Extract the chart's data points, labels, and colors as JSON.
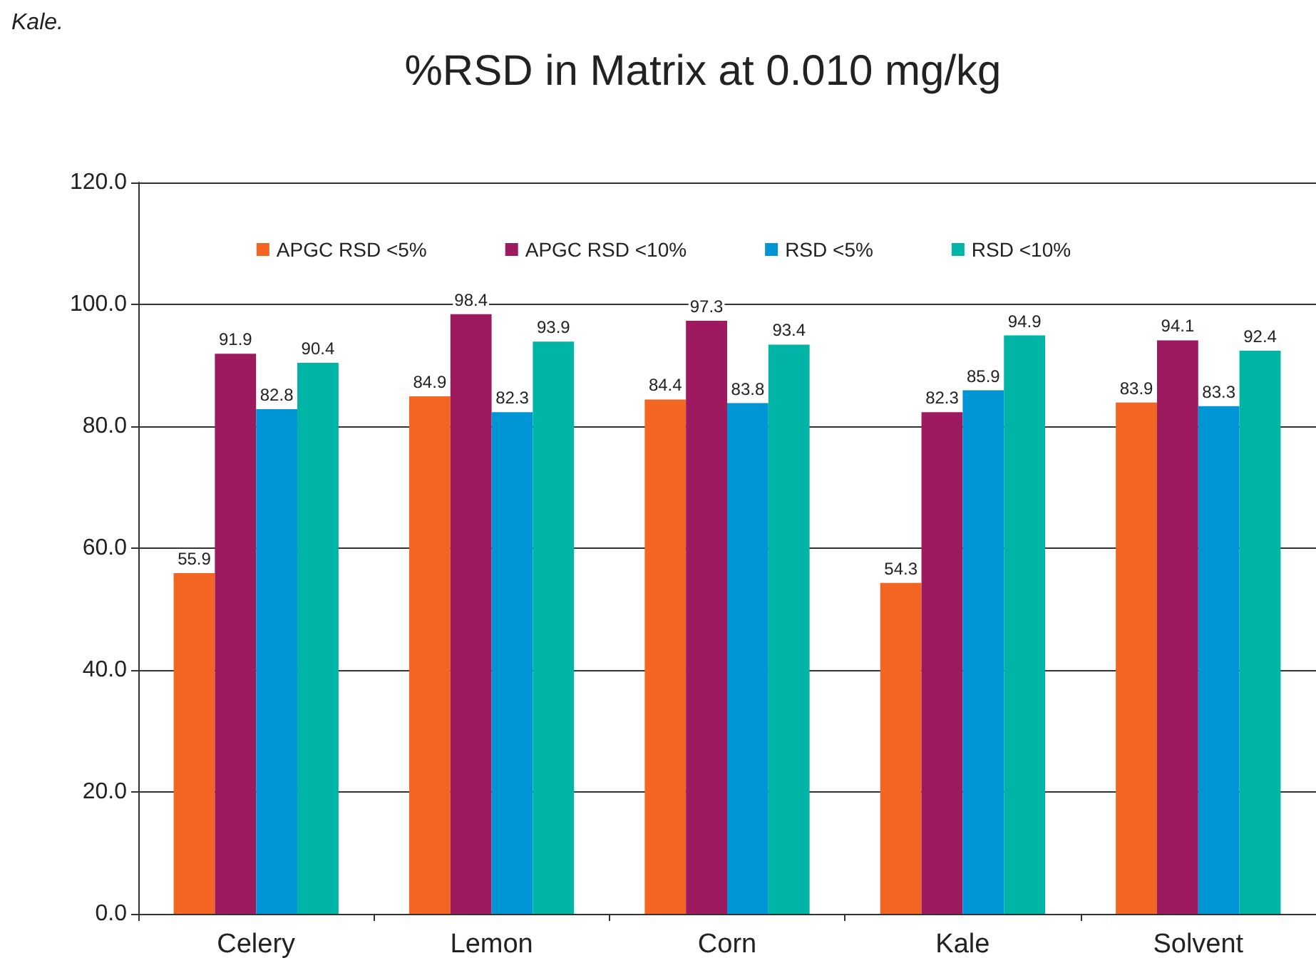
{
  "chart_data": {
    "type": "bar",
    "title": "%RSD in Matrix at 0.010 mg/kg",
    "annotations": [
      "Kale."
    ],
    "categories": [
      "Celery",
      "Lemon",
      "Corn",
      "Kale",
      "Solvent"
    ],
    "series": [
      {
        "name": "APGC RSD <5%",
        "color": "#f26522",
        "values": [
          55.9,
          84.9,
          84.4,
          54.3,
          83.9
        ]
      },
      {
        "name": "APGC RSD <10%",
        "color": "#9e1a5e",
        "values": [
          91.9,
          98.4,
          97.3,
          82.3,
          94.1
        ]
      },
      {
        "name": "RSD <5%",
        "color": "#0096d6",
        "values": [
          82.8,
          82.3,
          83.8,
          85.9,
          83.3
        ]
      },
      {
        "name": "RSD <10%",
        "color": "#00b5a5",
        "values": [
          90.4,
          93.9,
          93.4,
          94.9,
          92.4
        ]
      }
    ],
    "ylim": [
      0,
      120
    ],
    "yticks": [
      {
        "value": 0,
        "label": "0.0"
      },
      {
        "value": 20,
        "label": "20.0"
      },
      {
        "value": 40,
        "label": "40.0"
      },
      {
        "value": 60,
        "label": "60.0"
      },
      {
        "value": 80,
        "label": "80.0"
      },
      {
        "value": 100,
        "label": "100.0"
      },
      {
        "value": 120,
        "label": "120.0"
      }
    ],
    "grid": "y",
    "legend": "top",
    "data_labels": true
  }
}
